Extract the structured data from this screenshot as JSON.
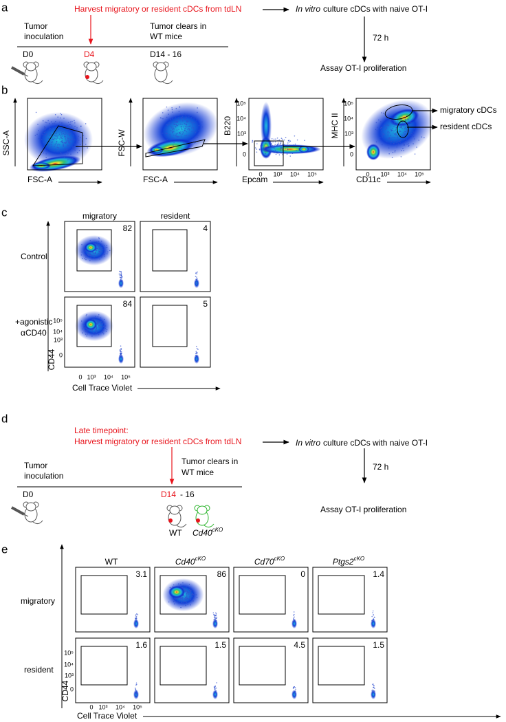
{
  "panel_a": {
    "label": "a",
    "harvest": "Harvest migratory or resident cDCs from tdLN",
    "culture_italic": "In vitro",
    "culture": "culture cDCs with naive OT-I",
    "inoculation": [
      "Tumor",
      "inoculation"
    ],
    "clears": [
      "Tumor clears in",
      "WT mice"
    ],
    "days": [
      "D0",
      "D4",
      "D14 - 16"
    ],
    "duration": "72 h",
    "assay": "Assay OT-I proliferation"
  },
  "panel_b": {
    "label": "b",
    "plots": [
      {
        "y_label": "SSC-A",
        "x_label": "FSC-A"
      },
      {
        "y_label": "FSC-W",
        "x_label": "FSC-A"
      },
      {
        "y_label": "B220",
        "x_label": "Epcam",
        "yticks": [
          "10⁵",
          "10⁴",
          "10³",
          "0"
        ],
        "xticks": [
          "0",
          "10³",
          "10⁴",
          "10⁵"
        ]
      },
      {
        "y_label": "MHC II",
        "x_label": "CD11c",
        "yticks": [
          "10⁵",
          "10⁴",
          "10³",
          "0"
        ],
        "xticks": [
          "0",
          "10³",
          "10⁴",
          "10⁵"
        ]
      }
    ],
    "gate_labels": [
      "migratory cDCs",
      "resident cDCs"
    ]
  },
  "panel_c": {
    "label": "c",
    "columns": [
      "migratory",
      "resident"
    ],
    "rows": [
      [
        "Control"
      ],
      [
        "+agonistic",
        "αCD40"
      ]
    ],
    "percentages": [
      [
        "82",
        "4"
      ],
      [
        "84",
        "5"
      ]
    ],
    "y_label": "CD44",
    "x_label": "Cell Trace Violet",
    "yticks": [
      "10⁵",
      "10⁴",
      "10³",
      "0"
    ],
    "xticks": [
      "0",
      "10³",
      "10⁴",
      "10⁵"
    ]
  },
  "panel_d": {
    "label": "d",
    "harvest": [
      "Late timepoint:",
      "Harvest migratory or resident cDCs from tdLN"
    ],
    "culture_italic": "In vitro",
    "culture": "culture cDCs with naive OT-I",
    "inoculation": [
      "Tumor",
      "inoculation"
    ],
    "clears": [
      "Tumor clears in",
      "WT mice"
    ],
    "day0": "D0",
    "day_red": "D14",
    "day_rest": "- 16",
    "duration": "72 h",
    "assay": "Assay OT-I proliferation",
    "mice": {
      "wt": "WT",
      "cko_gene": "Cd40",
      "cko_sup": "cKO"
    }
  },
  "panel_e": {
    "label": "e",
    "columns": [
      {
        "name": "WT"
      },
      {
        "gene": "Cd40",
        "sup": "cKO"
      },
      {
        "gene": "Cd70",
        "sup": "cKO"
      },
      {
        "gene": "Ptgs2",
        "sup": "cKO"
      }
    ],
    "rows": [
      "migratory",
      "resident"
    ],
    "percentages": [
      [
        "3.1",
        "86",
        "0",
        "1.4"
      ],
      [
        "1.6",
        "1.5",
        "4.5",
        "1.5"
      ]
    ],
    "y_label": "CD44",
    "x_label": "Cell Trace Violet",
    "yticks": [
      "10⁵",
      "10⁴",
      "10³",
      "0"
    ],
    "xticks": [
      "0",
      "10³",
      "10⁴",
      "10⁵"
    ]
  }
}
